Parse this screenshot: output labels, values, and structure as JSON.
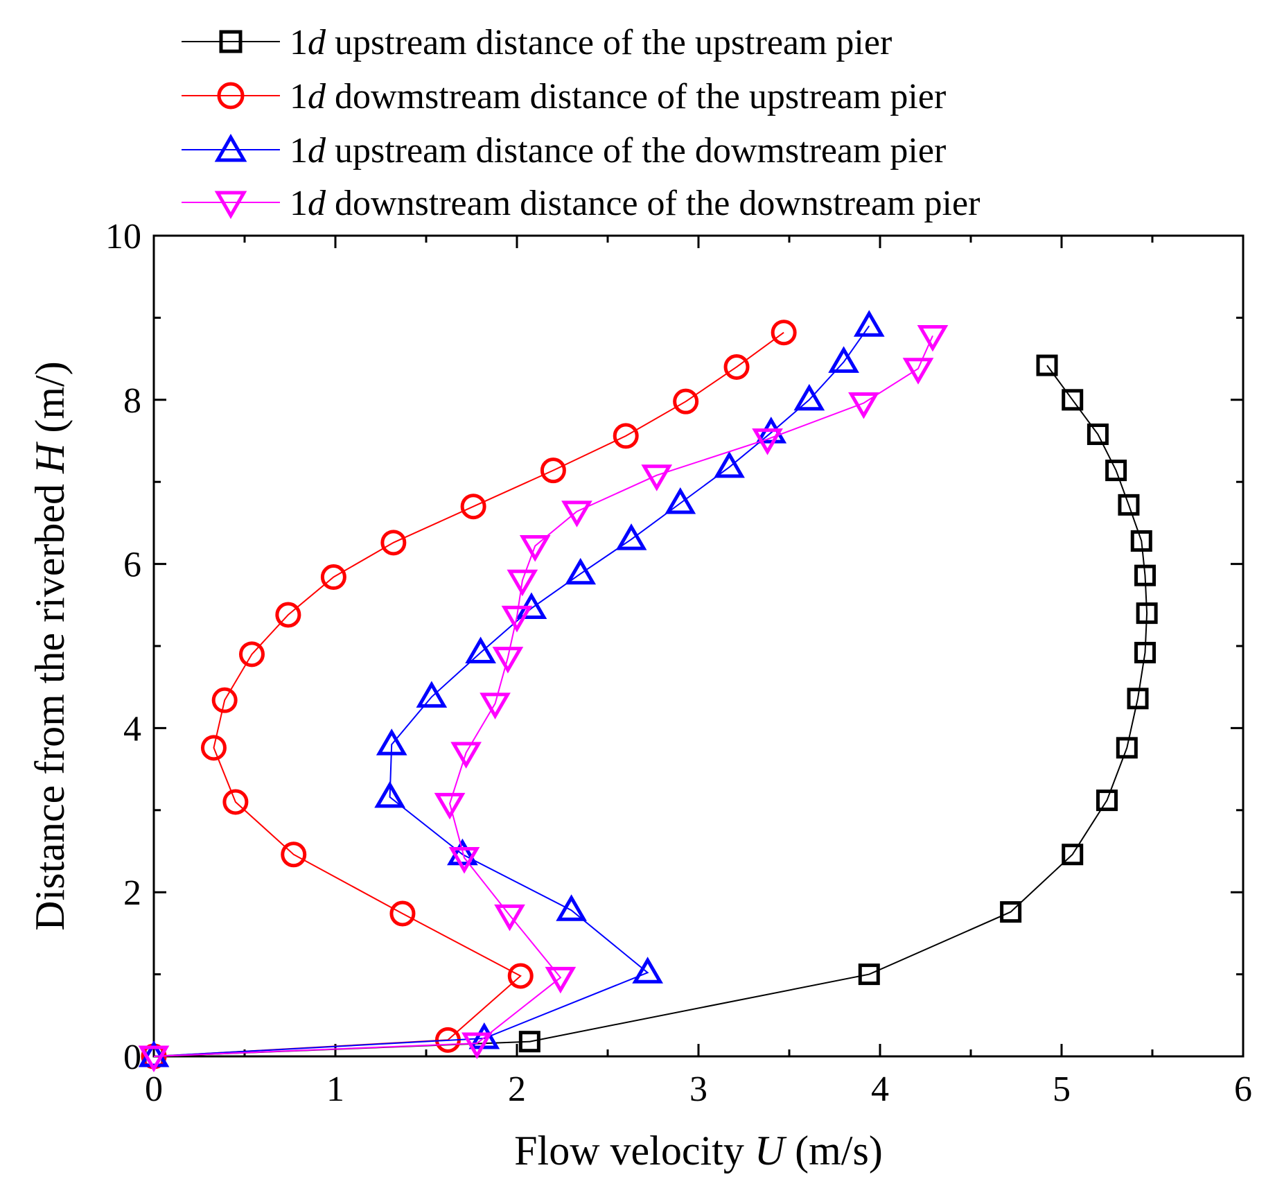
{
  "chart_data": {
    "type": "line",
    "title": "",
    "xlabel": {
      "prefix": "Flow velocity ",
      "var": "U",
      "suffix": " (m/s)"
    },
    "ylabel": {
      "prefix": "Distance from the riverbed ",
      "var": "H",
      "suffix": " (m/)"
    },
    "xlim": [
      0,
      6
    ],
    "ylim": [
      0,
      10
    ],
    "x_ticks": [
      "0",
      "1",
      "2",
      "3",
      "4",
      "5",
      "6"
    ],
    "y_ticks": [
      "0",
      "2",
      "4",
      "6",
      "8",
      "10"
    ],
    "grid": false,
    "legend_position": "top",
    "series": [
      {
        "name_num": "1",
        "name_var": "d",
        "name_rest": " upstream distance of the upstream pier",
        "color": "#000000",
        "marker": "square",
        "x": [
          0.0,
          2.07,
          3.94,
          4.72,
          5.06,
          5.25,
          5.36,
          5.42,
          5.46,
          5.47,
          5.46,
          5.44,
          5.37,
          5.3,
          5.2,
          5.06,
          4.92
        ],
        "y": [
          0.0,
          0.18,
          1.0,
          1.76,
          2.46,
          3.12,
          3.76,
          4.36,
          4.92,
          5.4,
          5.86,
          6.28,
          6.72,
          7.14,
          7.58,
          8.0,
          8.42
        ]
      },
      {
        "name_num": "1",
        "name_var": "d",
        "name_rest": " dowmstream distance of the upstream pier",
        "color": "#ff0000",
        "marker": "circle",
        "x": [
          0.0,
          1.62,
          2.02,
          1.37,
          0.77,
          0.45,
          0.33,
          0.39,
          0.54,
          0.74,
          0.99,
          1.32,
          1.76,
          2.2,
          2.6,
          2.93,
          3.21,
          3.47
        ],
        "y": [
          0.0,
          0.2,
          0.98,
          1.74,
          2.46,
          3.1,
          3.76,
          4.34,
          4.9,
          5.38,
          5.84,
          6.26,
          6.7,
          7.14,
          7.56,
          7.98,
          8.4,
          8.82
        ]
      },
      {
        "name_num": "1",
        "name_var": "d",
        "name_rest": " upstream distance of the dowmstream pier",
        "color": "#0000ff",
        "marker": "triangle-up",
        "x": [
          0.0,
          1.82,
          2.72,
          2.3,
          1.7,
          1.3,
          1.31,
          1.53,
          1.8,
          2.08,
          2.35,
          2.63,
          2.9,
          3.17,
          3.4,
          3.61,
          3.8,
          3.94
        ],
        "y": [
          0.0,
          0.22,
          1.02,
          1.78,
          2.46,
          3.16,
          3.8,
          4.38,
          4.92,
          5.46,
          5.88,
          6.3,
          6.74,
          7.18,
          7.6,
          8.0,
          8.46,
          8.9
        ]
      },
      {
        "name_num": "1",
        "name_var": "d",
        "name_rest": " downstream distance of the downstream pier",
        "color": "#ff00ff",
        "marker": "triangle-down",
        "x": [
          0.0,
          1.78,
          2.24,
          1.96,
          1.71,
          1.63,
          1.72,
          1.88,
          1.95,
          2.0,
          2.03,
          2.1,
          2.33,
          2.77,
          3.38,
          3.91,
          4.21,
          4.29
        ],
        "y": [
          0.0,
          0.16,
          0.96,
          1.72,
          2.42,
          3.08,
          3.7,
          4.3,
          4.86,
          5.36,
          5.8,
          6.22,
          6.64,
          7.08,
          7.52,
          7.96,
          8.38,
          8.78
        ]
      }
    ]
  }
}
